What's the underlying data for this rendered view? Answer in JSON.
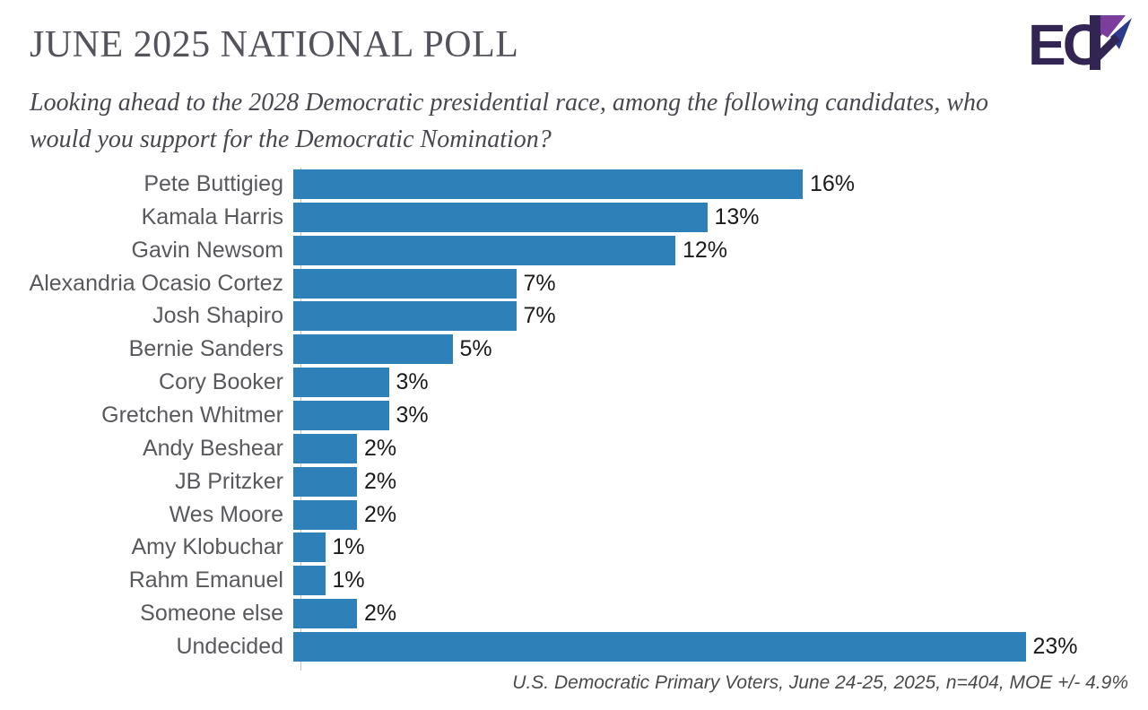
{
  "header": {
    "title": "JUNE 2025 NATIONAL POLL",
    "question_lines": [
      "Looking ahead to the 2028 Democratic presidential race, among the following candidates, who",
      "would you support for the Democratic Nomination?"
    ],
    "logo_text": "ECP"
  },
  "footer": {
    "source": "U.S. Democratic Primary Voters, June 24-25, 2025, n=404, MOE +/- 4.9%"
  },
  "colors": {
    "bar": "#2E80B9",
    "axis": "#C2C2C2",
    "title_text": "#54535B",
    "label_text": "#58595C",
    "value_text": "#1B1B1B",
    "logo_dark": "#322553",
    "logo_purple": "#7B3E9D",
    "logo_navy": "#2C3A8C"
  },
  "chart_data": {
    "type": "bar",
    "orientation": "horizontal",
    "title": "JUNE 2025 NATIONAL POLL",
    "xlabel": "",
    "ylabel": "",
    "xlim": [
      0,
      23
    ],
    "grid": false,
    "legend": false,
    "value_suffix": "%",
    "categories": [
      "Pete Buttigieg",
      "Kamala Harris",
      "Gavin Newsom",
      "Alexandria Ocasio Cortez",
      "Josh Shapiro",
      "Bernie Sanders",
      "Cory Booker",
      "Gretchen Whitmer",
      "Andy Beshear",
      "JB Pritzker",
      "Wes Moore",
      "Amy Klobuchar",
      "Rahm Emanuel",
      "Someone else",
      "Undecided"
    ],
    "values": [
      16,
      13,
      12,
      7,
      7,
      5,
      3,
      3,
      2,
      2,
      2,
      1,
      1,
      2,
      23
    ],
    "data_labels": [
      "16%",
      "13%",
      "12%",
      "7%",
      "7%",
      "5%",
      "3%",
      "3%",
      "2%",
      "2%",
      "2%",
      "1%",
      "1%",
      "2%",
      "23%"
    ]
  }
}
